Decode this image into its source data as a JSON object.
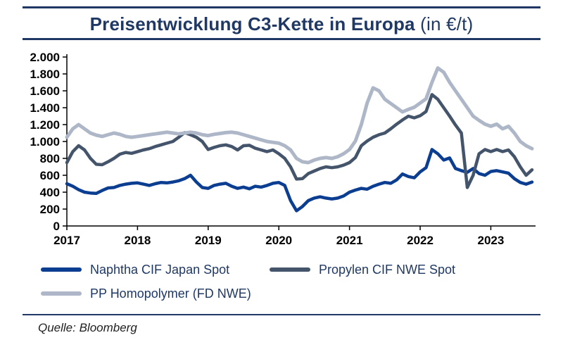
{
  "header": {
    "title": "Preisentwicklung C3-Kette in Europa",
    "unit_suffix": " (in €/t)"
  },
  "source": {
    "label": "Quelle: Bloomberg"
  },
  "colors": {
    "accent_navy": "#1F3864",
    "axis_black": "#000000"
  },
  "chart_data": {
    "type": "line",
    "title": "Preisentwicklung C3-Kette in Europa (in €/t)",
    "x_start": "2017-01",
    "x_end": "2023-08",
    "frequency": "monthly",
    "grid": false,
    "legend_position": "bottom",
    "ylim": [
      0,
      2000
    ],
    "ytick_values": [
      0,
      200,
      400,
      600,
      800,
      1000,
      1200,
      1400,
      1600,
      1800,
      2000
    ],
    "ytick_labels": [
      "0",
      "200",
      "400",
      "600",
      "800",
      "1.000",
      "1.200",
      "1.400",
      "1.600",
      "1.800",
      "2.000"
    ],
    "xticks": [
      {
        "index": 0,
        "label": "2017"
      },
      {
        "index": 12,
        "label": "2018"
      },
      {
        "index": 24,
        "label": "2019"
      },
      {
        "index": 36,
        "label": "2020"
      },
      {
        "index": 48,
        "label": "2021"
      },
      {
        "index": 60,
        "label": "2022"
      },
      {
        "index": 72,
        "label": "2023"
      }
    ],
    "series": [
      {
        "name": "Naphtha CIF Japan Spot",
        "color": "#0B3D91",
        "width": 4.5,
        "values": [
          500,
          470,
          430,
          400,
          390,
          385,
          420,
          450,
          455,
          480,
          495,
          505,
          510,
          495,
          480,
          500,
          515,
          510,
          520,
          535,
          560,
          600,
          520,
          455,
          445,
          480,
          495,
          505,
          470,
          445,
          460,
          440,
          470,
          460,
          480,
          505,
          515,
          480,
          300,
          180,
          230,
          300,
          330,
          345,
          330,
          320,
          330,
          355,
          400,
          425,
          445,
          435,
          470,
          495,
          515,
          505,
          545,
          615,
          585,
          570,
          640,
          690,
          905,
          855,
          780,
          805,
          680,
          655,
          635,
          680,
          620,
          600,
          645,
          655,
          640,
          625,
          560,
          515,
          495,
          520
        ]
      },
      {
        "name": "Propylen CIF NWE Spot",
        "color": "#44546A",
        "width": 4.5,
        "values": [
          750,
          880,
          950,
          900,
          800,
          730,
          725,
          760,
          800,
          850,
          870,
          860,
          880,
          900,
          915,
          940,
          960,
          980,
          1000,
          1050,
          1105,
          1080,
          1050,
          1000,
          905,
          930,
          950,
          960,
          940,
          900,
          950,
          955,
          920,
          900,
          880,
          900,
          855,
          800,
          700,
          555,
          560,
          620,
          650,
          680,
          700,
          690,
          700,
          720,
          750,
          810,
          950,
          1005,
          1050,
          1080,
          1100,
          1150,
          1205,
          1255,
          1300,
          1280,
          1305,
          1355,
          1555,
          1500,
          1400,
          1300,
          1195,
          1100,
          455,
          600,
          855,
          905,
          880,
          905,
          880,
          900,
          820,
          700,
          600,
          665
        ]
      },
      {
        "name": "PP Homopolymer (FD NWE)",
        "color": "#ADB7C7",
        "width": 5,
        "values": [
          1050,
          1150,
          1200,
          1150,
          1100,
          1075,
          1060,
          1080,
          1100,
          1085,
          1060,
          1050,
          1060,
          1070,
          1080,
          1090,
          1100,
          1110,
          1100,
          1090,
          1100,
          1110,
          1100,
          1080,
          1070,
          1085,
          1095,
          1105,
          1110,
          1100,
          1080,
          1060,
          1040,
          1020,
          1000,
          990,
          980,
          950,
          900,
          800,
          760,
          750,
          780,
          800,
          810,
          800,
          820,
          855,
          905,
          1005,
          1200,
          1455,
          1635,
          1600,
          1500,
          1450,
          1400,
          1350,
          1380,
          1405,
          1455,
          1505,
          1700,
          1870,
          1820,
          1700,
          1600,
          1500,
          1400,
          1300,
          1250,
          1205,
          1180,
          1205,
          1150,
          1180,
          1100,
          1000,
          950,
          915
        ]
      }
    ]
  }
}
